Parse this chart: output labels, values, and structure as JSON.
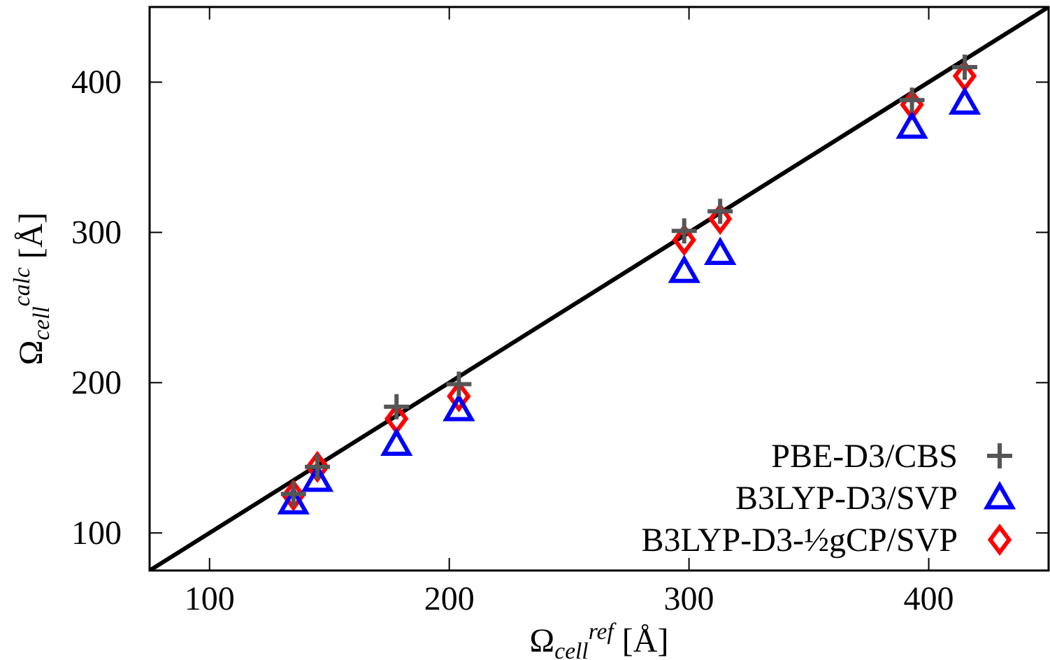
{
  "chart_data": {
    "type": "scatter",
    "xlabel": "Ω$_{cell}$$^{ref}$ [Å]",
    "ylabel": "Ω$_{cell}$$^{calc}$ [Å]",
    "xlim": [
      75,
      450
    ],
    "ylim": [
      75,
      450
    ],
    "xticks": [
      100,
      200,
      300,
      400
    ],
    "yticks": [
      100,
      200,
      300,
      400
    ],
    "grid": false,
    "legend": "bottom right",
    "x": [
      135,
      145,
      178,
      204,
      298,
      313,
      393,
      415
    ],
    "series": [
      {
        "type": "line",
        "color": "#000000",
        "x": [
          75,
          450
        ],
        "values": [
          75,
          450
        ],
        "marker": "none",
        "line_style": "solid"
      },
      {
        "name": "PBE-D3/CBS",
        "color": "#555555",
        "marker": "cross",
        "values": [
          126,
          144,
          184,
          199,
          301,
          314,
          388,
          410
        ]
      },
      {
        "name": "B3LYP-D3/SVP",
        "color": "#0000ff",
        "marker": "triangle",
        "values": [
          120,
          135,
          159,
          182,
          274,
          286,
          370,
          386
        ]
      },
      {
        "name": "B3LYP-D3-½gCP/SVP",
        "color": "#ff0000",
        "marker": "diamond",
        "values": [
          125,
          144,
          176,
          191,
          295,
          309,
          385,
          404
        ]
      }
    ]
  }
}
